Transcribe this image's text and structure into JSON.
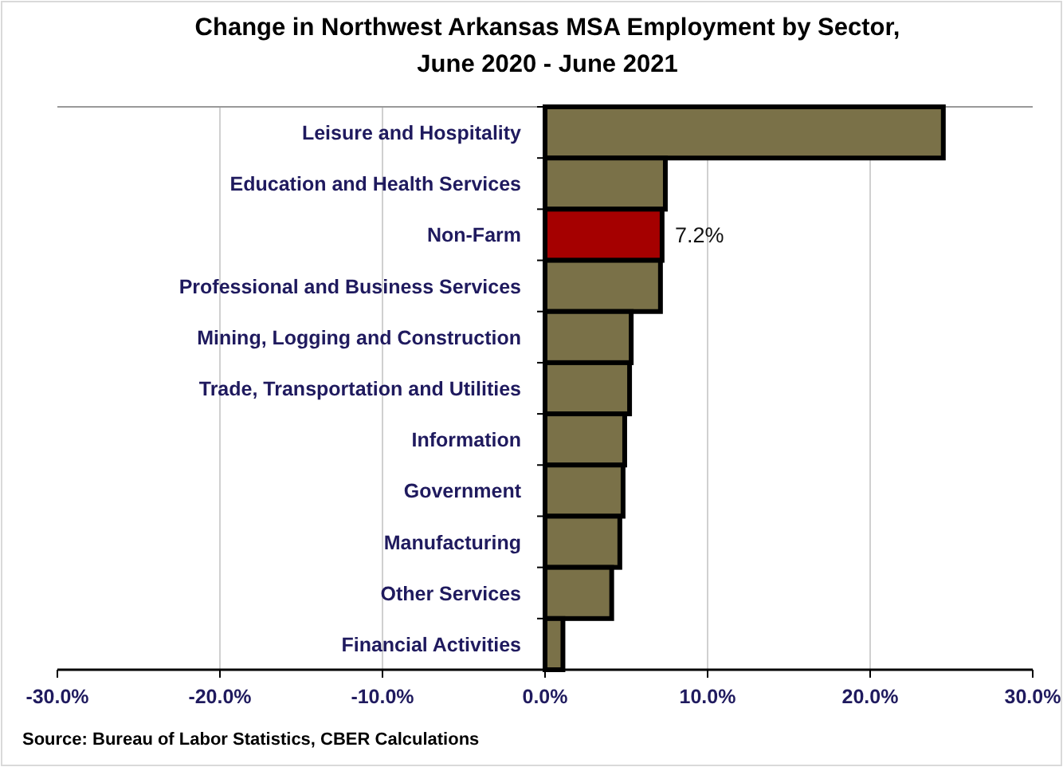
{
  "chart_data": {
    "type": "bar",
    "orientation": "horizontal",
    "title": "Change in Northwest Arkansas MSA Employment by Sector,\nJune 2020 - June 2021",
    "categories": [
      "Leisure and Hospitality",
      "Education and Health Services",
      "Non-Farm",
      "Professional and Business Services",
      "Mining, Logging and Construction",
      "Trade, Transportation and Utilities",
      "Information",
      "Government",
      "Manufacturing",
      "Other Services",
      "Financial Activities"
    ],
    "values": [
      24.5,
      7.4,
      7.2,
      7.1,
      5.3,
      5.2,
      4.9,
      4.8,
      4.6,
      4.1,
      1.1
    ],
    "colors": [
      "#7a7148",
      "#7a7148",
      "#a50000",
      "#7a7148",
      "#7a7148",
      "#7a7148",
      "#7a7148",
      "#7a7148",
      "#7a7148",
      "#7a7148",
      "#7a7148"
    ],
    "value_labels": [
      null,
      null,
      "7.2%",
      null,
      null,
      null,
      null,
      null,
      null,
      null,
      null
    ],
    "xlim": [
      -30,
      30
    ],
    "xticks": [
      {
        "value": -30,
        "label": "-30.0%"
      },
      {
        "value": -20,
        "label": "-20.0%"
      },
      {
        "value": -10,
        "label": "-10.0%"
      },
      {
        "value": 0,
        "label": "0.0%"
      },
      {
        "value": 10,
        "label": "10.0%"
      },
      {
        "value": 20,
        "label": "20.0%"
      },
      {
        "value": 30,
        "label": "30.0%"
      }
    ],
    "grid": "x",
    "annotations": [
      "Source: Bureau of Labor Statistics, CBER Calculations"
    ]
  }
}
